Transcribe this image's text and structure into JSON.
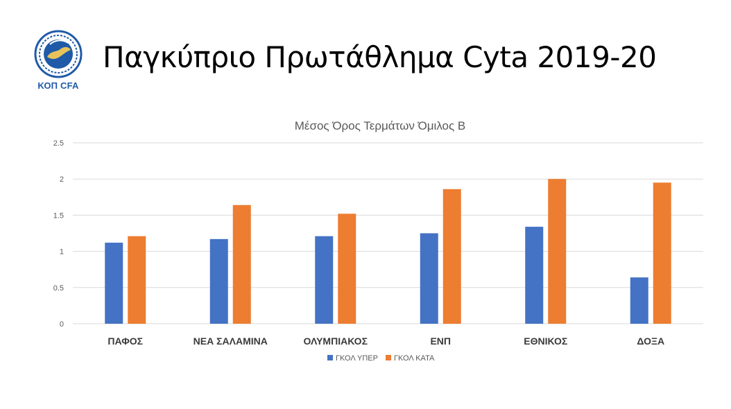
{
  "slide": {
    "title": "Παγκύπριο Πρωτάθλημα Cyta 2019-20",
    "logo_text": "ΚΟΠ CFA"
  },
  "colors": {
    "series_1": "#4472c4",
    "series_2": "#ed7d31",
    "grid": "#d9d9d9",
    "text": "#595959",
    "logo": "#1f5aa8"
  },
  "chart_data": {
    "type": "bar",
    "title": "Μέσος Όρος Τερμάτων Όμιλος Β",
    "xlabel": "",
    "ylabel": "",
    "ylim": [
      0,
      2.5
    ],
    "yticks": [
      0,
      0.5,
      1,
      1.5,
      2,
      2.5
    ],
    "ytick_labels": [
      "0",
      "0.5",
      "1",
      "1.5",
      "2",
      "2.5"
    ],
    "grid": true,
    "legend_position": "bottom",
    "categories": [
      "ΠΑΦΟΣ",
      "ΝΕΑ ΣΑΛΑΜΙΝΑ",
      "ΟΛΥΜΠΙΑΚΟΣ",
      "ΕΝΠ",
      "ΕΘΝΙΚΟΣ",
      "ΔΟΞΑ"
    ],
    "series": [
      {
        "name": "ΓΚΟΛ ΥΠΕΡ",
        "color": "#4472c4",
        "values": [
          1.12,
          1.17,
          1.21,
          1.25,
          1.34,
          0.64
        ]
      },
      {
        "name": "ΓΚΟΛ ΚΑΤΑ",
        "color": "#ed7d31",
        "values": [
          1.21,
          1.64,
          1.52,
          1.86,
          2.0,
          1.95
        ]
      }
    ]
  }
}
